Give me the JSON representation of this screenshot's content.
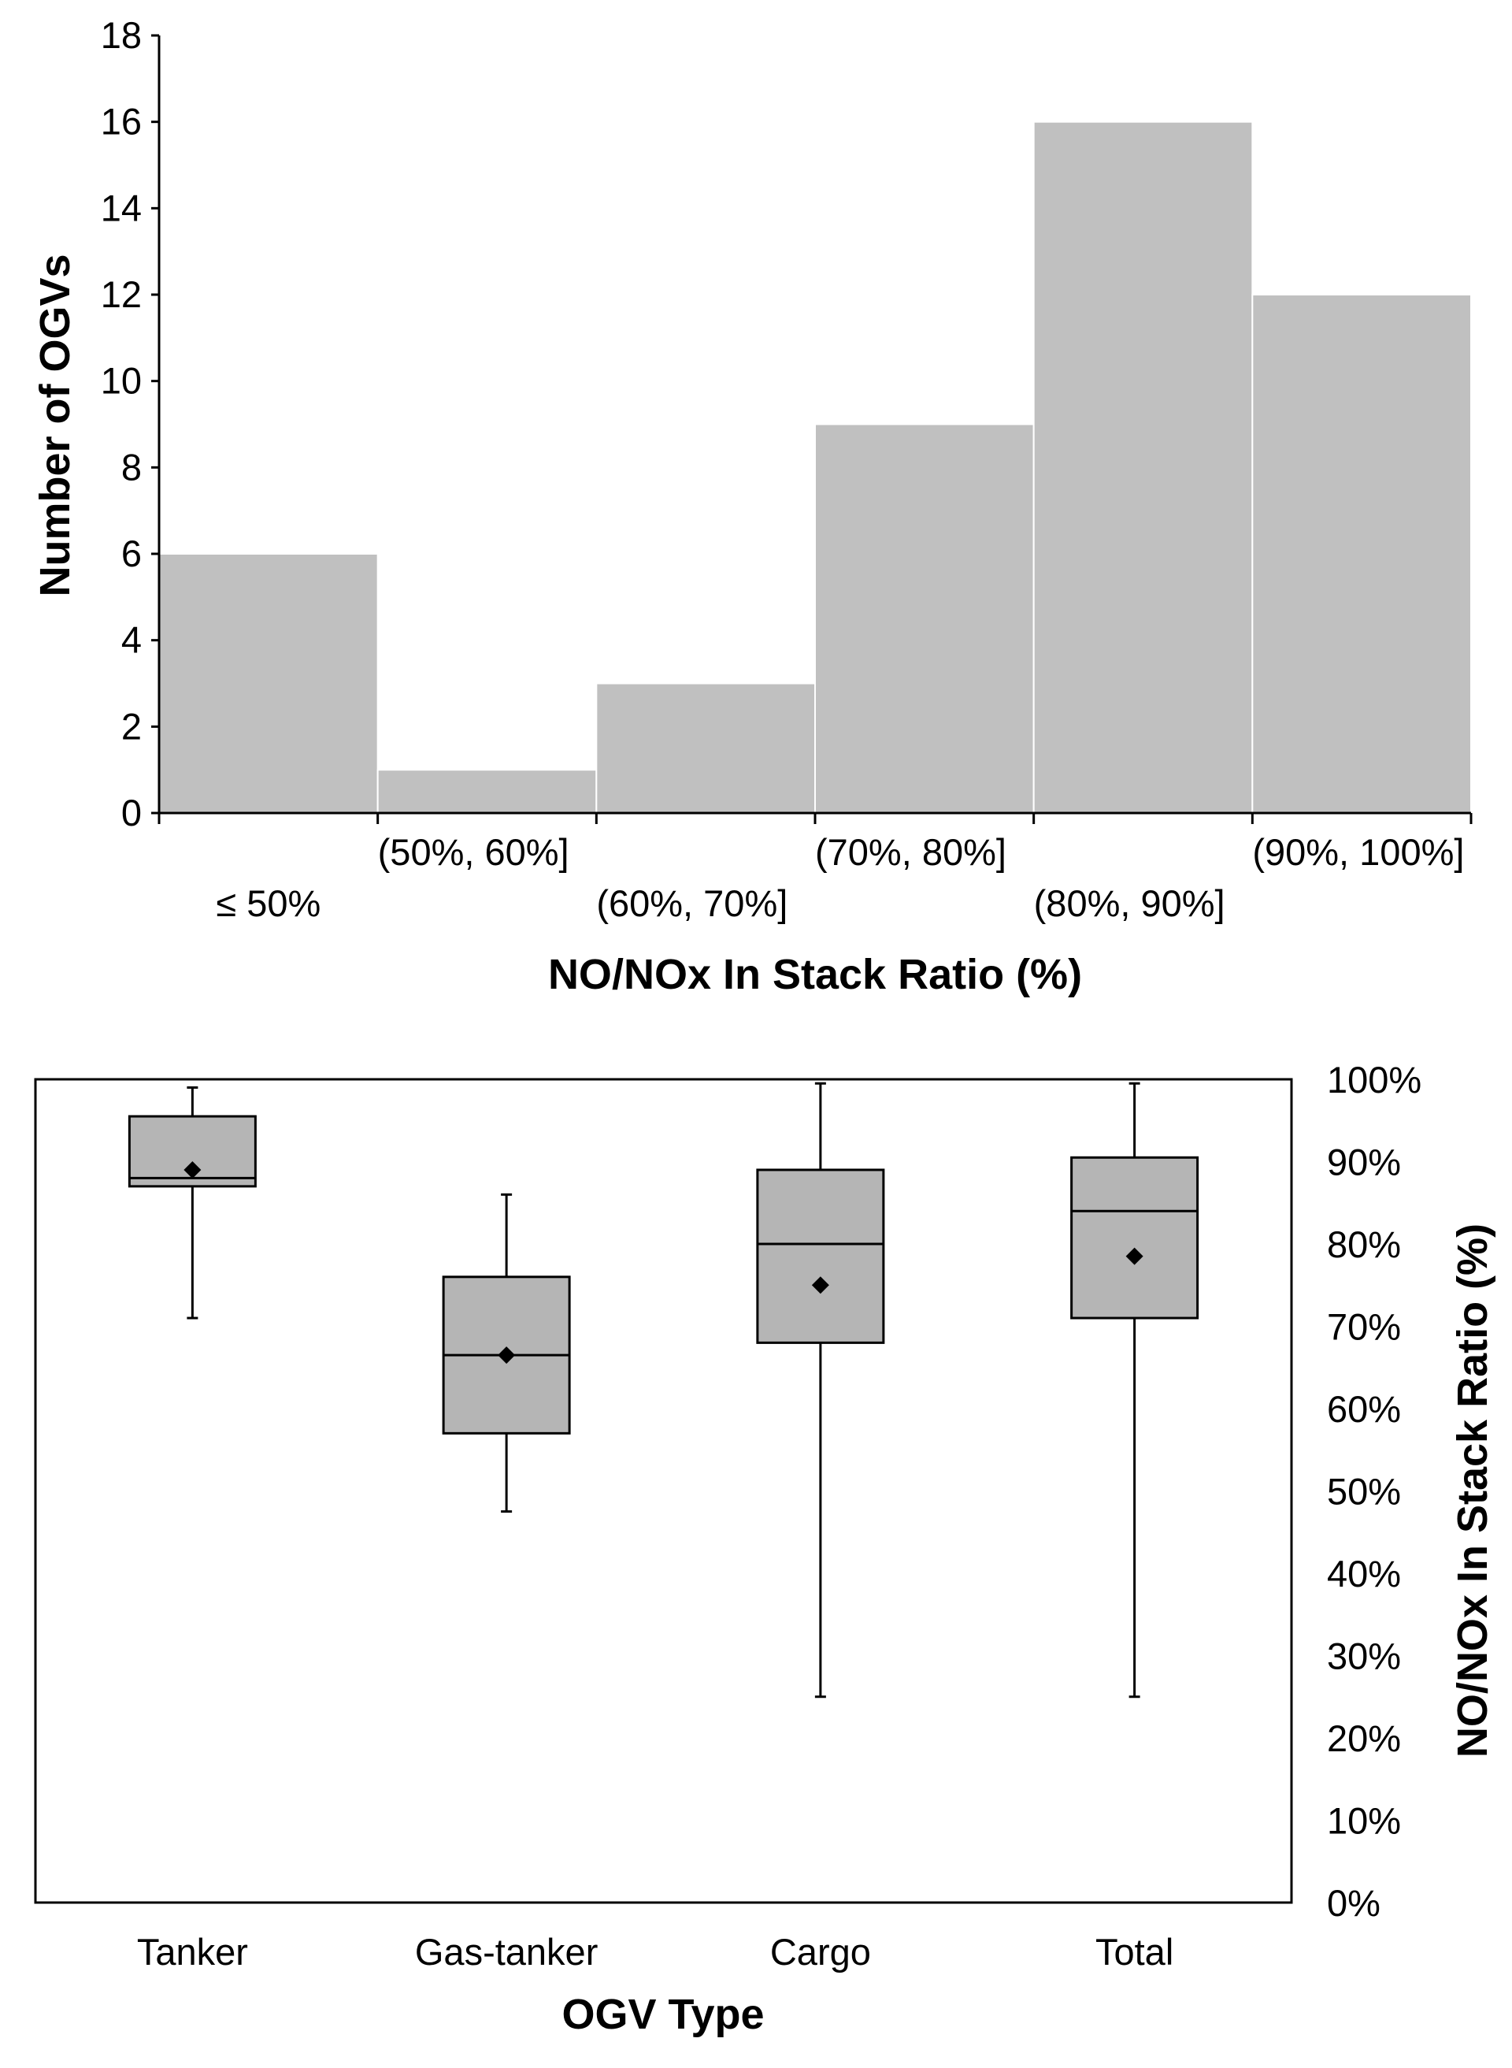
{
  "chart_data": [
    {
      "type": "bar",
      "title": "",
      "xlabel": "NO/NOx In Stack Ratio (%)",
      "ylabel": "Number of OGVs",
      "categories": [
        "≤ 50%",
        "(50%, 60%]",
        "(60%, 70%]",
        "(70%, 80%]",
        "(80%, 90%]",
        "(90%, 100%]"
      ],
      "values": [
        6,
        1,
        3,
        9,
        16,
        12
      ],
      "ylim": [
        0,
        18
      ],
      "yticks": [
        0,
        2,
        4,
        6,
        8,
        10,
        12,
        14,
        16,
        18
      ],
      "bar_color": "#c0c0c0",
      "grid": false
    },
    {
      "type": "box",
      "title": "",
      "xlabel": "OGV Type",
      "ylabel": "NO/NOx In Stack Ratio (%)",
      "categories": [
        "Tanker",
        "Gas-tanker",
        "Cargo",
        "Total"
      ],
      "boxes": [
        {
          "name": "Tanker",
          "min": 71,
          "q1": 87,
          "median": 88,
          "q3": 95.5,
          "max": 99,
          "mean": 89
        },
        {
          "name": "Gas-tanker",
          "min": 47.5,
          "q1": 57,
          "median": 66.5,
          "q3": 76,
          "max": 86,
          "mean": 66.5
        },
        {
          "name": "Cargo",
          "min": 25,
          "q1": 68,
          "median": 80,
          "q3": 89,
          "max": 99.5,
          "mean": 75
        },
        {
          "name": "Total",
          "min": 25,
          "q1": 71,
          "median": 84,
          "q3": 90.5,
          "max": 99.5,
          "mean": 78.5
        }
      ],
      "ylim": [
        0,
        100
      ],
      "yticks": [
        "0%",
        "10%",
        "20%",
        "30%",
        "40%",
        "50%",
        "60%",
        "70%",
        "80%",
        "90%",
        "100%"
      ],
      "box_color": "#b5b5b5",
      "grid": false
    }
  ]
}
